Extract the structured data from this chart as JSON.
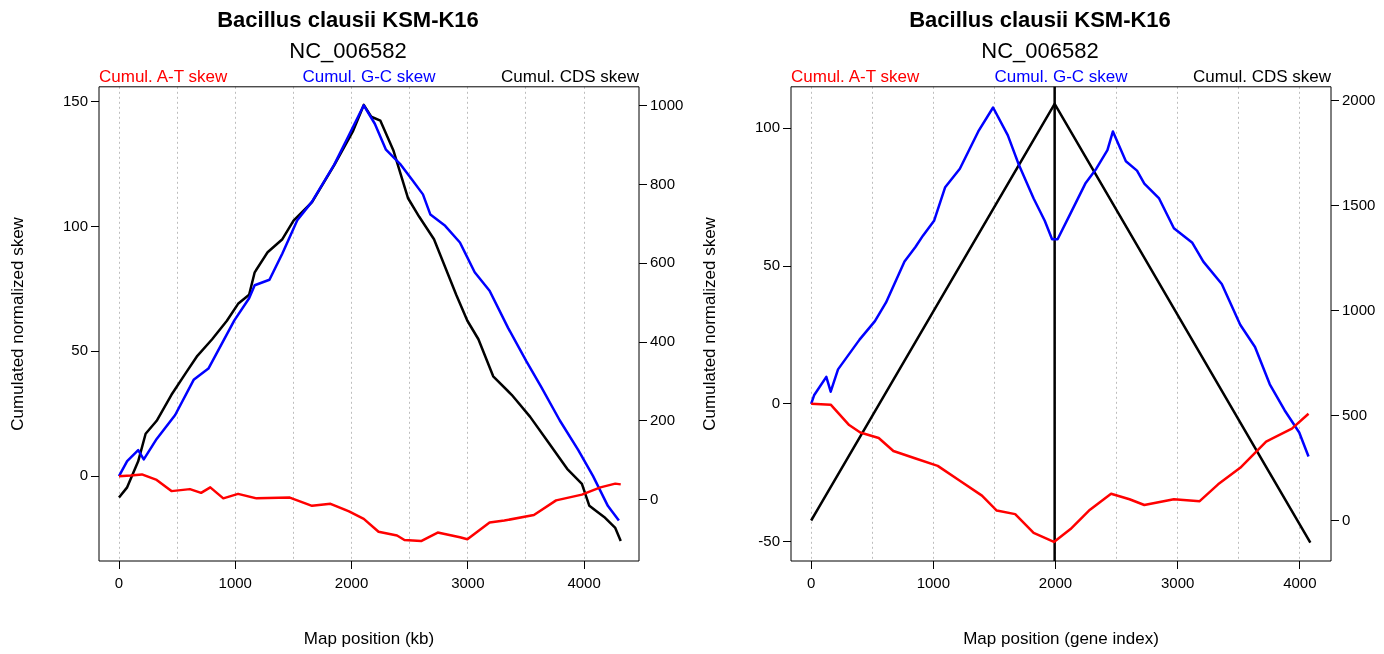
{
  "chart_data": [
    {
      "type": "line",
      "title": "Bacillus clausii KSM-K16",
      "subtitle": "NC_006582",
      "xlabel": "Map position (kb)",
      "ylabel": "Cumulated normalized skew",
      "legend": "top",
      "grid": "x",
      "xlim": [
        -172,
        4472
      ],
      "xticks": [
        0,
        {
          "value": 500,
          "label": null
        },
        1000,
        {
          "value": 1500,
          "label": null
        },
        2000,
        {
          "value": 2500,
          "label": null
        },
        3000,
        {
          "value": 3500,
          "label": null
        },
        4000
      ],
      "ylim": [
        -34,
        156
      ],
      "yticks": [
        0,
        50,
        100,
        150
      ],
      "y2lim": [
        -156,
        1048
      ],
      "y2ticks": [
        0,
        200,
        400,
        600,
        800,
        1000
      ],
      "series": [
        {
          "name": "Cumul. A-T skew",
          "color": "#ff0000",
          "x": [
            0,
            100,
            197,
            324,
            451,
            610,
            706,
            785,
            897,
            1024,
            1183,
            1469,
            1660,
            1819,
            1978,
            2105,
            2232,
            2391,
            2455,
            2598,
            2741,
            2932,
            2996,
            3187,
            3314,
            3568,
            3759,
            3981,
            4140,
            4268,
            4315
          ],
          "values": [
            0,
            0.3,
            0.7,
            -1.5,
            -6,
            -5.2,
            -6.7,
            -4.5,
            -8.9,
            -7.1,
            -8.9,
            -8.6,
            -11.9,
            -11.1,
            -14.1,
            -17.1,
            -22.3,
            -23.8,
            -25.6,
            -26,
            -22.6,
            -24.5,
            -25.3,
            -18.6,
            -17.8,
            -15.6,
            -9.7,
            -7.4,
            -4.5,
            -3,
            -3.3
          ]
        },
        {
          "name": "Cumul. G-C skew",
          "color": "#0000ff",
          "x": [
            0,
            70,
            165,
            213,
            324,
            483,
            642,
            769,
            992,
            1119,
            1167,
            1294,
            1405,
            1533,
            1660,
            1851,
            1978,
            2105,
            2200,
            2296,
            2423,
            2519,
            2614,
            2678,
            2805,
            2932,
            3059,
            3187,
            3346,
            3504,
            3632,
            3791,
            3950,
            4077,
            4204,
            4299
          ],
          "values": [
            0,
            6,
            10.4,
            6.7,
            14.9,
            24.5,
            38.6,
            43.1,
            62.4,
            71.3,
            76.5,
            78.7,
            89.2,
            102.5,
            110,
            124.8,
            136.7,
            148.6,
            141.2,
            130.8,
            124.8,
            118.9,
            112.9,
            104.8,
            100.3,
            93.6,
            81.7,
            74.3,
            59.4,
            46,
            35.7,
            22.3,
            10.4,
            0,
            -11.9,
            -17.8
          ]
        },
        {
          "name": "Cumul. CDS skew",
          "color": "#000000",
          "axis": "y2",
          "x": [
            0,
            70,
            165,
            229,
            324,
            451,
            578,
            674,
            801,
            928,
            1024,
            1119,
            1167,
            1278,
            1405,
            1501,
            1660,
            1851,
            2010,
            2105,
            2169,
            2248,
            2359,
            2486,
            2582,
            2709,
            2900,
            2996,
            3091,
            3218,
            3377,
            3536,
            3695,
            3854,
            3981,
            4045,
            4172,
            4268,
            4315
          ],
          "values": [
            5,
            31,
            97,
            167,
            200,
            266,
            323,
            365,
            407,
            454,
            497,
            520,
            577,
            628,
            661,
            708,
            755,
            849,
            934,
            1002,
            972,
            962,
            887,
            765,
            718,
            661,
            520,
            454,
            407,
            313,
            266,
            210,
            144,
            78,
            40,
            -16,
            -44,
            -72,
            -105
          ]
        }
      ]
    },
    {
      "type": "line",
      "title": "Bacillus clausii KSM-K16",
      "subtitle": "NC_006582",
      "xlabel": "Map position (gene index)",
      "ylabel": "Cumulated normalized skew",
      "legend": "top",
      "grid": "x",
      "xlim": [
        -165,
        4255
      ],
      "xticks": [
        0,
        {
          "value": 500,
          "label": null
        },
        1000,
        {
          "value": 1500,
          "label": null
        },
        2000,
        {
          "value": 2500,
          "label": null
        },
        3000,
        {
          "value": 3500,
          "label": null
        },
        4000
      ],
      "ylim": [
        -57,
        115
      ],
      "yticks": [
        -50,
        0,
        50,
        100
      ],
      "y2lim": [
        -193,
        2067
      ],
      "y2ticks": [
        0,
        500,
        1000,
        1500,
        2000
      ],
      "ref_lines": [
        {
          "axis": "x",
          "value": 1993,
          "color": "#000000"
        }
      ],
      "series": [
        {
          "name": "Cumul. A-T skew",
          "color": "#ff0000",
          "x": [
            0,
            160,
            311,
            402,
            553,
            673,
            855,
            1036,
            1217,
            1398,
            1519,
            1670,
            1821,
            1987,
            2123,
            2274,
            2455,
            2606,
            2727,
            2969,
            3180,
            3331,
            3512,
            3724,
            3935,
            4071
          ],
          "values": [
            0,
            -0.3,
            -7.7,
            -10.4,
            -12.4,
            -17.1,
            -19.8,
            -22.5,
            -27.9,
            -33.3,
            -38.7,
            -40,
            -46.8,
            -50.1,
            -45.4,
            -38.7,
            -32.6,
            -34.6,
            -36.7,
            -34.6,
            -35.3,
            -29.2,
            -23.2,
            -13.7,
            -9,
            -3.6
          ]
        },
        {
          "name": "Cumul. G-C skew",
          "color": "#0000ff",
          "x": [
            0,
            24,
            124,
            160,
            220,
            396,
            522,
            613,
            764,
            855,
            915,
            1006,
            1097,
            1217,
            1368,
            1489,
            1610,
            1700,
            1821,
            1912,
            1972,
            2017,
            2123,
            2244,
            2334,
            2425,
            2470,
            2576,
            2667,
            2727,
            2848,
            2969,
            3120,
            3210,
            3361,
            3512,
            3633,
            3754,
            3875,
            3995,
            4071
          ],
          "values": [
            0,
            3.1,
            9.8,
            4.4,
            12.5,
            23.3,
            30,
            36.8,
            51.6,
            57,
            61,
            66.4,
            78.6,
            85.3,
            98.8,
            107.5,
            97.4,
            86.7,
            74.5,
            66.4,
            59.7,
            59.7,
            69.1,
            79.9,
            85.3,
            92,
            98.8,
            88,
            84.6,
            79.9,
            74.5,
            63.7,
            58.4,
            51.6,
            43.5,
            28.7,
            20.6,
            7.1,
            -2.3,
            -10.4,
            -19.1
          ]
        },
        {
          "name": "Cumul. CDS skew",
          "color": "#000000",
          "axis": "y2",
          "x": [
            0,
            1993,
            4086
          ],
          "values": [
            0,
            1986,
            -106
          ]
        }
      ]
    }
  ]
}
